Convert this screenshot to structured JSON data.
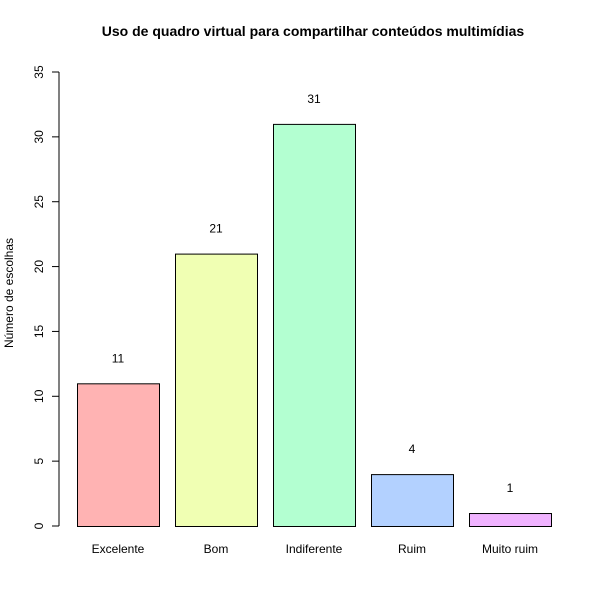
{
  "chart_data": {
    "type": "bar",
    "title": "Uso de quadro virtual para compartilhar conteúdos multimídias",
    "xlabel": "",
    "ylabel": "Número de escolhas",
    "categories": [
      "Excelente",
      "Bom",
      "Indiferente",
      "Ruim",
      "Muito ruim"
    ],
    "values": [
      11,
      21,
      31,
      4,
      1
    ],
    "data_labels": [
      "11",
      "21",
      "31",
      "4",
      "1"
    ],
    "ylim": [
      0,
      35
    ],
    "yticks": [
      0,
      5,
      10,
      15,
      20,
      25,
      30,
      35
    ],
    "ytick_labels": [
      "0",
      "5",
      "10",
      "15",
      "20",
      "25",
      "30",
      "35"
    ],
    "colors": [
      "#FFB3B3",
      "#F0FFB3",
      "#B3FFD1",
      "#B3D1FF",
      "#F0B3FF"
    ],
    "bar_edge_color": "#000000",
    "grid": false,
    "legend": "none"
  }
}
